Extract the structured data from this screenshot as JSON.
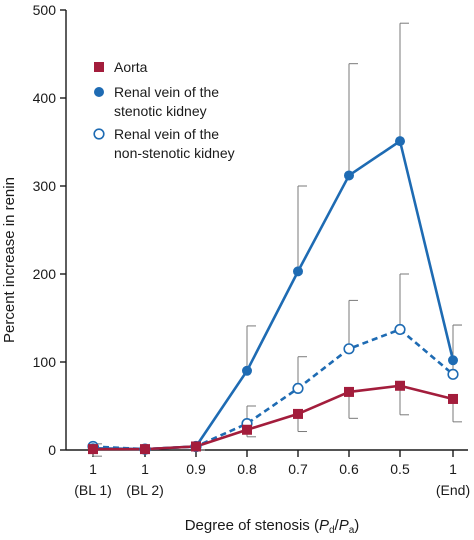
{
  "chart_data": {
    "type": "line",
    "title": "",
    "ylabel": "Percent increase in renin",
    "xlabel": {
      "prefix": "Degree of stenosis (",
      "num_main": "P",
      "num_sub": "d",
      "slash": "/",
      "den_main": "P",
      "den_sub": "a",
      "suffix": ")"
    },
    "ylim": [
      0,
      500
    ],
    "yticks": [
      "0",
      "100",
      "200",
      "300",
      "400",
      "500"
    ],
    "categories": [
      {
        "top": "1",
        "bottom": "(BL 1)"
      },
      {
        "top": "1",
        "bottom": "(BL 2)"
      },
      {
        "top": "0.9",
        "bottom": ""
      },
      {
        "top": "0.8",
        "bottom": ""
      },
      {
        "top": "0.7",
        "bottom": ""
      },
      {
        "top": "0.6",
        "bottom": ""
      },
      {
        "top": "0.5",
        "bottom": ""
      },
      {
        "top": "1",
        "bottom": "(End)"
      }
    ],
    "grid": false,
    "legend_position": "top-left",
    "series": [
      {
        "name": "Aorta",
        "color": "#a31d3c",
        "marker": "square-filled",
        "line_style": "solid",
        "values": [
          1,
          1,
          4,
          23,
          41,
          66,
          73,
          58
        ],
        "err_lower": [
          8,
          0,
          4,
          8,
          20,
          30,
          33,
          26
        ],
        "err_upper": [
          0,
          0,
          0,
          0,
          0,
          0,
          0,
          0
        ]
      },
      {
        "name": "Renal vein of the stenotic kidney",
        "color": "#1e6bb3",
        "marker": "circle-filled",
        "line_style": "solid",
        "values": [
          2,
          1,
          4,
          90,
          203,
          312,
          351,
          102
        ],
        "err_lower": [
          0,
          0,
          0,
          0,
          0,
          0,
          0,
          0
        ],
        "err_upper": [
          0,
          0,
          0,
          51,
          97,
          127,
          134,
          40
        ]
      },
      {
        "name": "Renal vein of the non-stenotic kidney",
        "color": "#1e6bb3",
        "marker": "circle-open",
        "line_style": "dashed",
        "values": [
          4,
          1,
          4,
          30,
          70,
          115,
          137,
          86
        ],
        "err_lower": [
          0,
          0,
          0,
          0,
          0,
          0,
          0,
          0
        ],
        "err_upper": [
          3,
          0,
          0,
          20,
          36,
          55,
          63,
          56
        ]
      }
    ],
    "legend": [
      {
        "lines": [
          "Aorta"
        ]
      },
      {
        "lines": [
          "Renal vein of the",
          "stenotic kidney"
        ]
      },
      {
        "lines": [
          "Renal vein of the",
          "non-stenotic kidney"
        ]
      }
    ]
  }
}
